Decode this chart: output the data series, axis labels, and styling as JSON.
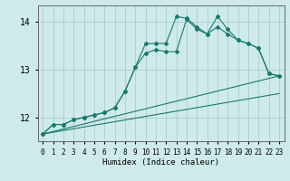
{
  "xlabel": "Humidex (Indice chaleur)",
  "bg_color": "#ceeaea",
  "grid_color": "#aacece",
  "line_color": "#1a7a6a",
  "xlim": [
    -0.5,
    23.5
  ],
  "ylim": [
    11.5,
    14.35
  ],
  "yticks": [
    12,
    13,
    14
  ],
  "xticks": [
    0,
    1,
    2,
    3,
    4,
    5,
    6,
    7,
    8,
    9,
    10,
    11,
    12,
    13,
    14,
    15,
    16,
    17,
    18,
    19,
    20,
    21,
    22,
    23
  ],
  "series1_x": [
    0,
    1,
    2,
    3,
    4,
    5,
    6,
    7,
    8,
    9,
    10,
    11,
    12,
    13,
    14,
    15,
    16,
    17,
    18,
    19,
    20,
    21,
    22,
    23
  ],
  "series1_y": [
    11.65,
    11.85,
    11.85,
    11.95,
    12.0,
    12.05,
    12.1,
    12.2,
    12.55,
    13.05,
    13.35,
    13.42,
    13.38,
    13.38,
    14.06,
    13.85,
    13.75,
    13.9,
    13.75,
    13.62,
    13.55,
    13.45,
    12.92,
    12.87
  ],
  "series2_x": [
    0,
    1,
    2,
    3,
    4,
    5,
    6,
    7,
    8,
    9,
    10,
    11,
    12,
    13,
    14,
    15,
    16,
    17,
    18,
    19,
    20,
    21,
    22,
    23
  ],
  "series2_y": [
    11.65,
    11.85,
    11.85,
    11.95,
    12.0,
    12.05,
    12.1,
    12.2,
    12.55,
    13.05,
    13.55,
    13.55,
    13.55,
    14.12,
    14.08,
    13.9,
    13.75,
    14.12,
    13.85,
    13.62,
    13.55,
    13.45,
    12.92,
    12.87
  ],
  "series3_x": [
    0,
    23
  ],
  "series3_y": [
    11.65,
    12.87
  ],
  "series4_x": [
    0,
    23
  ],
  "series4_y": [
    11.65,
    12.5
  ]
}
